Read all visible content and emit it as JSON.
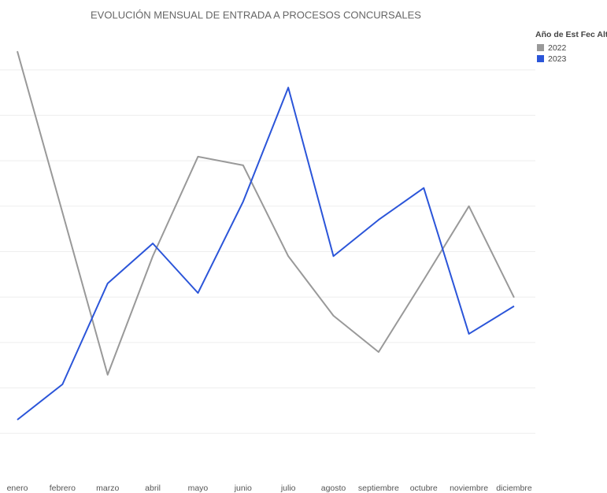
{
  "chart_data": {
    "type": "line",
    "title": "EVOLUCIÓN MENSUAL DE ENTRADA A PROCESOS CONCURSALES",
    "legend_title": "Año de Est Fec Alta",
    "legend": "right",
    "grid": true,
    "categories": [
      "enero",
      "febrero",
      "marzo",
      "abril",
      "mayo",
      "junio",
      "julio",
      "agosto",
      "septiembre",
      "octubre",
      "noviembre",
      "diciembre"
    ],
    "ylim": [
      0,
      10
    ],
    "yticks": [
      1,
      2,
      3,
      4,
      5,
      6,
      7,
      8,
      9
    ],
    "series": [
      {
        "name": "2022",
        "color": "#999999",
        "values": [
          9.41,
          5.86,
          2.29,
          4.9,
          7.09,
          6.9,
          4.9,
          3.59,
          2.79,
          4.38,
          6.0,
          3.99
        ]
      },
      {
        "name": "2023",
        "color": "#2b55d9",
        "values": [
          1.3,
          2.08,
          4.3,
          5.18,
          4.09,
          6.1,
          8.61,
          4.9,
          5.7,
          6.4,
          3.19,
          3.8
        ]
      }
    ]
  }
}
